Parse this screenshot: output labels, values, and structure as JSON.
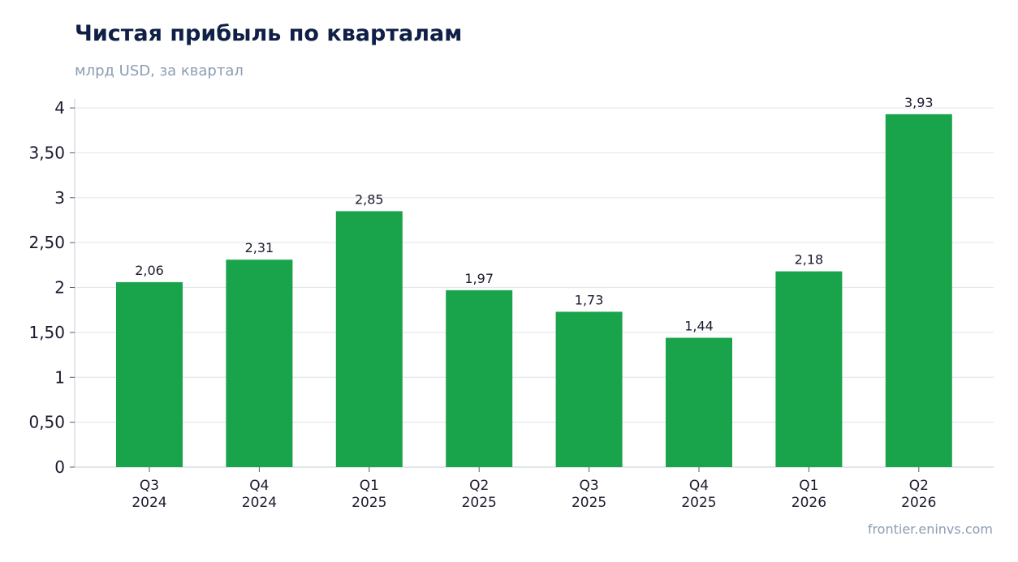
{
  "title": "Чистая прибыль по кварталам",
  "subtitle": "млрд USD, за квартал",
  "source": "frontier.eninvs.com",
  "colors": {
    "bar": "#19a34a",
    "grid": "#e3e8ef",
    "axis": "#cfd6df",
    "title": "#0f1f45",
    "muted": "#8c9db1"
  },
  "chart_data": {
    "type": "bar",
    "title": "Чистая прибыль по кварталам",
    "subtitle": "млрд USD, за квартал",
    "categories": [
      [
        "Q3",
        "2024"
      ],
      [
        "Q4",
        "2024"
      ],
      [
        "Q1",
        "2025"
      ],
      [
        "Q2",
        "2025"
      ],
      [
        "Q3",
        "2025"
      ],
      [
        "Q4",
        "2025"
      ],
      [
        "Q1",
        "2026"
      ],
      [
        "Q2",
        "2026"
      ]
    ],
    "values": [
      2.06,
      2.31,
      2.85,
      1.97,
      1.73,
      1.44,
      2.18,
      3.93
    ],
    "value_labels": [
      "2,06",
      "2,31",
      "2,85",
      "1,97",
      "1,73",
      "1,44",
      "2,18",
      "3,93"
    ],
    "yticks": [
      0,
      0.5,
      1,
      1.5,
      2,
      2.5,
      3,
      3.5,
      4
    ],
    "ytick_labels": [
      "0",
      "0,50",
      "1",
      "1,50",
      "2",
      "2,50",
      "3",
      "3,50",
      "4"
    ],
    "ylim": [
      0,
      4.1
    ],
    "grid": true,
    "legend": "none"
  }
}
